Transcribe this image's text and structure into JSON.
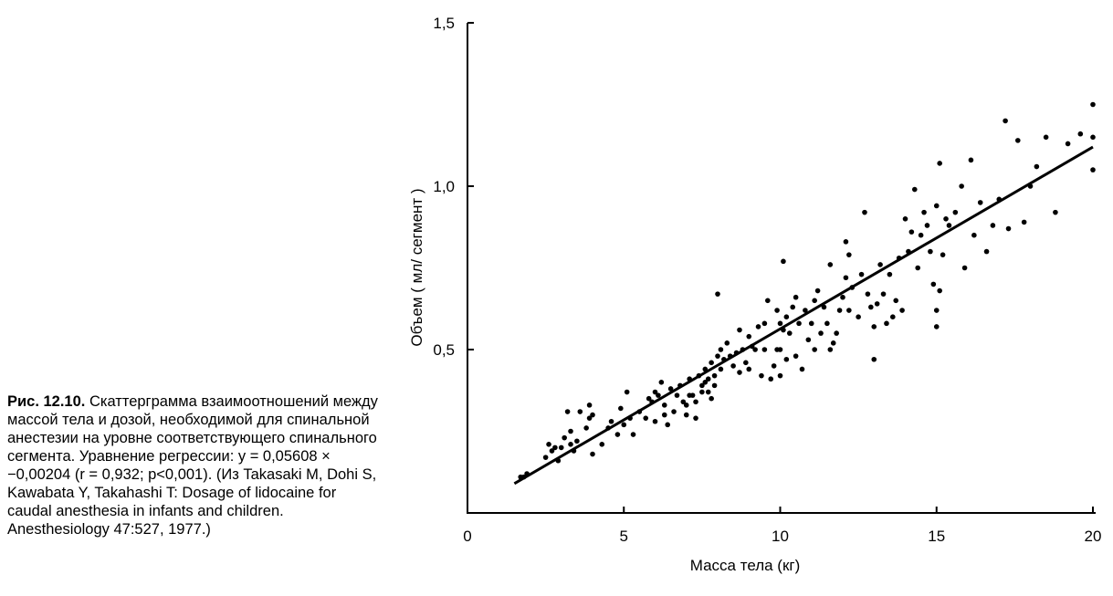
{
  "caption": {
    "lead": "Рис. 12.10.",
    "text": "Скаттерграмма взаимоотношений между массой тела и дозой, необходимой для спинальной анестезии на уровне соответствующего спинального сегмента. Уравнение регрессии: y = 0,05608 × −0,00204 (r = 0,932; p<0,001). (Из Takasaki M, Dohi S, Kawabata Y, Takahashi T: Dosage of lidocaine for caudal anesthesia in infants and children. Anesthesiology 47:527, 1977.)"
  },
  "chart_data": {
    "type": "scatter",
    "title": "",
    "xlabel": "Масса тела (кг)",
    "ylabel": "Объем ( мл/ сегмент )",
    "xlim": [
      0,
      20
    ],
    "ylim": [
      0,
      1.5
    ],
    "x_ticks": [
      0,
      5,
      10,
      15,
      20
    ],
    "x_tick_labels": [
      "0",
      "5",
      "10",
      "15",
      "20"
    ],
    "y_ticks": [
      0.5,
      1.0,
      1.5
    ],
    "y_tick_labels": [
      "0,5",
      "1,0",
      "1,5"
    ],
    "grid": false,
    "legend": "none",
    "regression_line": {
      "x": [
        1.5,
        20
      ],
      "y": [
        0.09,
        1.12
      ]
    },
    "points": [
      [
        1.7,
        0.11
      ],
      [
        1.8,
        0.11
      ],
      [
        1.9,
        0.12
      ],
      [
        2.5,
        0.17
      ],
      [
        2.6,
        0.21
      ],
      [
        2.7,
        0.19
      ],
      [
        2.8,
        0.2
      ],
      [
        2.9,
        0.16
      ],
      [
        3.0,
        0.2
      ],
      [
        3.1,
        0.23
      ],
      [
        3.2,
        0.31
      ],
      [
        3.3,
        0.21
      ],
      [
        3.3,
        0.25
      ],
      [
        3.4,
        0.19
      ],
      [
        3.5,
        0.22
      ],
      [
        3.6,
        0.31
      ],
      [
        3.8,
        0.26
      ],
      [
        3.9,
        0.29
      ],
      [
        3.9,
        0.33
      ],
      [
        4.0,
        0.3
      ],
      [
        4.0,
        0.18
      ],
      [
        4.3,
        0.21
      ],
      [
        4.5,
        0.26
      ],
      [
        4.6,
        0.28
      ],
      [
        4.8,
        0.24
      ],
      [
        4.9,
        0.32
      ],
      [
        5.0,
        0.27
      ],
      [
        5.1,
        0.37
      ],
      [
        5.2,
        0.29
      ],
      [
        5.3,
        0.24
      ],
      [
        5.5,
        0.31
      ],
      [
        5.7,
        0.29
      ],
      [
        5.8,
        0.35
      ],
      [
        5.9,
        0.34
      ],
      [
        6.0,
        0.28
      ],
      [
        6.0,
        0.37
      ],
      [
        6.1,
        0.36
      ],
      [
        6.2,
        0.4
      ],
      [
        6.3,
        0.33
      ],
      [
        6.3,
        0.3
      ],
      [
        6.4,
        0.27
      ],
      [
        6.5,
        0.38
      ],
      [
        6.6,
        0.31
      ],
      [
        6.7,
        0.36
      ],
      [
        6.8,
        0.39
      ],
      [
        6.9,
        0.34
      ],
      [
        7.0,
        0.33
      ],
      [
        7.0,
        0.3
      ],
      [
        7.1,
        0.36
      ],
      [
        7.1,
        0.41
      ],
      [
        7.2,
        0.36
      ],
      [
        7.3,
        0.34
      ],
      [
        7.3,
        0.29
      ],
      [
        7.4,
        0.42
      ],
      [
        7.5,
        0.39
      ],
      [
        7.5,
        0.37
      ],
      [
        7.6,
        0.4
      ],
      [
        7.6,
        0.44
      ],
      [
        7.7,
        0.41
      ],
      [
        7.7,
        0.37
      ],
      [
        7.8,
        0.46
      ],
      [
        7.8,
        0.35
      ],
      [
        7.9,
        0.42
      ],
      [
        7.9,
        0.39
      ],
      [
        8.0,
        0.48
      ],
      [
        8.0,
        0.67
      ],
      [
        8.1,
        0.44
      ],
      [
        8.1,
        0.5
      ],
      [
        8.2,
        0.47
      ],
      [
        8.3,
        0.52
      ],
      [
        8.4,
        0.48
      ],
      [
        8.5,
        0.45
      ],
      [
        8.6,
        0.49
      ],
      [
        8.7,
        0.56
      ],
      [
        8.7,
        0.43
      ],
      [
        8.8,
        0.5
      ],
      [
        8.9,
        0.46
      ],
      [
        9.0,
        0.54
      ],
      [
        9.0,
        0.44
      ],
      [
        9.1,
        0.51
      ],
      [
        9.2,
        0.5
      ],
      [
        9.3,
        0.57
      ],
      [
        9.4,
        0.42
      ],
      [
        9.5,
        0.58
      ],
      [
        9.5,
        0.5
      ],
      [
        9.6,
        0.65
      ],
      [
        9.7,
        0.41
      ],
      [
        9.8,
        0.45
      ],
      [
        9.9,
        0.62
      ],
      [
        9.9,
        0.5
      ],
      [
        10.0,
        0.58
      ],
      [
        10.0,
        0.5
      ],
      [
        10.0,
        0.42
      ],
      [
        10.1,
        0.77
      ],
      [
        10.1,
        0.56
      ],
      [
        10.2,
        0.47
      ],
      [
        10.2,
        0.6
      ],
      [
        10.3,
        0.55
      ],
      [
        10.4,
        0.63
      ],
      [
        10.5,
        0.48
      ],
      [
        10.5,
        0.66
      ],
      [
        10.6,
        0.58
      ],
      [
        10.7,
        0.44
      ],
      [
        10.8,
        0.62
      ],
      [
        10.9,
        0.53
      ],
      [
        11.0,
        0.58
      ],
      [
        11.1,
        0.65
      ],
      [
        11.1,
        0.5
      ],
      [
        11.2,
        0.68
      ],
      [
        11.3,
        0.55
      ],
      [
        11.4,
        0.63
      ],
      [
        11.5,
        0.58
      ],
      [
        11.6,
        0.76
      ],
      [
        11.6,
        0.5
      ],
      [
        11.7,
        0.52
      ],
      [
        11.8,
        0.55
      ],
      [
        11.9,
        0.62
      ],
      [
        12.0,
        0.66
      ],
      [
        12.1,
        0.72
      ],
      [
        12.1,
        0.83
      ],
      [
        12.2,
        0.62
      ],
      [
        12.2,
        0.79
      ],
      [
        12.3,
        0.69
      ],
      [
        12.5,
        0.6
      ],
      [
        12.6,
        0.73
      ],
      [
        12.7,
        0.92
      ],
      [
        12.8,
        0.67
      ],
      [
        12.9,
        0.63
      ],
      [
        13.0,
        0.57
      ],
      [
        13.0,
        0.47
      ],
      [
        13.1,
        0.64
      ],
      [
        13.2,
        0.76
      ],
      [
        13.3,
        0.67
      ],
      [
        13.4,
        0.58
      ],
      [
        13.5,
        0.73
      ],
      [
        13.6,
        0.6
      ],
      [
        13.7,
        0.65
      ],
      [
        13.8,
        0.78
      ],
      [
        13.9,
        0.62
      ],
      [
        14.0,
        0.9
      ],
      [
        14.1,
        0.8
      ],
      [
        14.2,
        0.86
      ],
      [
        14.3,
        0.99
      ],
      [
        14.4,
        0.75
      ],
      [
        14.5,
        0.85
      ],
      [
        14.6,
        0.92
      ],
      [
        14.7,
        0.88
      ],
      [
        14.8,
        0.8
      ],
      [
        14.9,
        0.7
      ],
      [
        15.0,
        0.62
      ],
      [
        15.0,
        0.57
      ],
      [
        15.0,
        0.94
      ],
      [
        15.1,
        1.07
      ],
      [
        15.1,
        0.68
      ],
      [
        15.2,
        0.79
      ],
      [
        15.3,
        0.9
      ],
      [
        15.4,
        0.88
      ],
      [
        15.6,
        0.92
      ],
      [
        15.8,
        1.0
      ],
      [
        15.9,
        0.75
      ],
      [
        16.1,
        1.08
      ],
      [
        16.2,
        0.85
      ],
      [
        16.4,
        0.95
      ],
      [
        16.6,
        0.8
      ],
      [
        16.8,
        0.88
      ],
      [
        17.0,
        0.96
      ],
      [
        17.2,
        1.2
      ],
      [
        17.3,
        0.87
      ],
      [
        17.6,
        1.14
      ],
      [
        17.8,
        0.89
      ],
      [
        18.0,
        1.0
      ],
      [
        18.2,
        1.06
      ],
      [
        18.5,
        1.15
      ],
      [
        18.8,
        0.92
      ],
      [
        19.2,
        1.13
      ],
      [
        19.6,
        1.16
      ],
      [
        20.0,
        1.25
      ],
      [
        20.0,
        1.15
      ],
      [
        20.0,
        1.05
      ]
    ]
  }
}
